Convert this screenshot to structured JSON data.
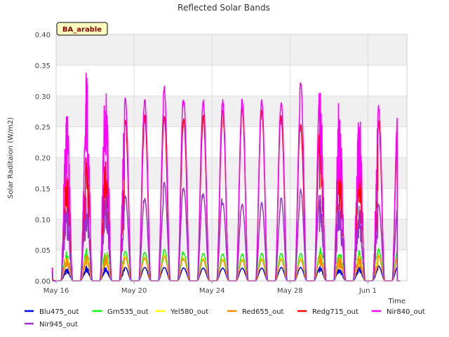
{
  "chart_data": {
    "type": "line",
    "title": "Reflected Solar Bands",
    "ylabel": "Solar Raditaion (W/m2)",
    "xlabel": "Time",
    "station_tag": "BA_arable",
    "ylim": [
      0,
      0.4
    ],
    "yticks": [
      "0.00",
      "0.05",
      "0.10",
      "0.15",
      "0.20",
      "0.25",
      "0.30",
      "0.35",
      "0.40"
    ],
    "xlim": [
      "2023-05-16",
      "2023-06-03"
    ],
    "xticks": [
      {
        "date": "2023-05-16",
        "label": "May 16"
      },
      {
        "date": "2023-05-20",
        "label": "May 20"
      },
      {
        "date": "2023-05-24",
        "label": "May 24"
      },
      {
        "date": "2023-05-28",
        "label": "May 28"
      },
      {
        "date": "2023-06-01",
        "label": "Jun 1"
      }
    ],
    "grid": true,
    "legend_position": "bottom",
    "days": [
      "2023-05-16",
      "2023-05-17",
      "2023-05-18",
      "2023-05-19",
      "2023-05-20",
      "2023-05-21",
      "2023-05-22",
      "2023-05-23",
      "2023-05-24",
      "2023-05-25",
      "2023-05-26",
      "2023-05-27",
      "2023-05-28",
      "2023-05-29",
      "2023-05-30",
      "2023-05-31",
      "2023-06-01",
      "2023-06-02"
    ],
    "series": [
      {
        "name": "Blu475_out",
        "color": "#0000ff",
        "daily_peak": [
          0.02,
          0.022,
          0.024,
          0.024,
          0.022,
          0.022,
          0.022,
          0.021,
          0.021,
          0.021,
          0.021,
          0.021,
          0.022,
          0.022,
          0.024,
          0.021,
          0.024,
          0.024
        ]
      },
      {
        "name": "Grn535_out",
        "color": "#00ff00",
        "daily_peak": [
          0.05,
          0.048,
          0.055,
          0.054,
          0.048,
          0.047,
          0.051,
          0.045,
          0.045,
          0.044,
          0.044,
          0.045,
          0.045,
          0.045,
          0.055,
          0.048,
          0.05,
          0.052
        ]
      },
      {
        "name": "Yel580_out",
        "color": "#ffff00",
        "daily_peak": [
          0.042,
          0.04,
          0.046,
          0.045,
          0.04,
          0.039,
          0.042,
          0.037,
          0.037,
          0.036,
          0.036,
          0.037,
          0.037,
          0.037,
          0.045,
          0.04,
          0.042,
          0.043
        ]
      },
      {
        "name": "Red655_out",
        "color": "#ff8c00",
        "daily_peak": [
          0.04,
          0.038,
          0.044,
          0.043,
          0.038,
          0.037,
          0.04,
          0.035,
          0.035,
          0.034,
          0.034,
          0.035,
          0.035,
          0.035,
          0.043,
          0.038,
          0.04,
          0.041
        ]
      },
      {
        "name": "Redg715_out",
        "color": "#ff0000",
        "daily_peak": [
          0.195,
          0.18,
          0.21,
          0.205,
          0.265,
          0.27,
          0.27,
          0.265,
          0.272,
          0.28,
          0.285,
          0.28,
          0.27,
          0.255,
          0.27,
          0.195,
          0.22,
          0.26
        ]
      },
      {
        "name": "Nir840_out",
        "color": "#ff00ff",
        "daily_peak": [
          0.295,
          0.28,
          0.352,
          0.316,
          0.298,
          0.298,
          0.316,
          0.297,
          0.297,
          0.295,
          0.297,
          0.295,
          0.295,
          0.328,
          0.32,
          0.27,
          0.285,
          0.285
        ]
      },
      {
        "name": "Nir945_out",
        "color": "#9932cc",
        "daily_peak": [
          0.138,
          0.12,
          0.142,
          0.145,
          0.139,
          0.135,
          0.162,
          0.152,
          0.143,
          0.128,
          0.125,
          0.128,
          0.136,
          0.15,
          0.145,
          0.12,
          0.123,
          0.125
        ]
      }
    ]
  }
}
